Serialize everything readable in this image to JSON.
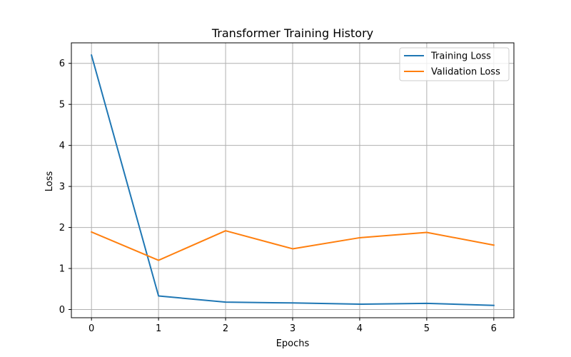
{
  "chart_data": {
    "type": "line",
    "title": "Transformer Training History",
    "xlabel": "Epochs",
    "ylabel": "Loss",
    "x": [
      0,
      1,
      2,
      3,
      4,
      5,
      6
    ],
    "xlim": [
      -0.3,
      6.3
    ],
    "ylim": [
      -0.2,
      6.5
    ],
    "xticks": [
      0,
      1,
      2,
      3,
      4,
      5,
      6
    ],
    "yticks": [
      0,
      1,
      2,
      3,
      4,
      5,
      6
    ],
    "grid": true,
    "legend_position": "top-right",
    "series": [
      {
        "name": "Training Loss",
        "color": "#1f77b4",
        "values": [
          6.2,
          0.33,
          0.18,
          0.16,
          0.13,
          0.15,
          0.1
        ]
      },
      {
        "name": "Validation Loss",
        "color": "#ff7f0e",
        "values": [
          1.89,
          1.2,
          1.92,
          1.48,
          1.75,
          1.88,
          1.57
        ]
      }
    ]
  }
}
